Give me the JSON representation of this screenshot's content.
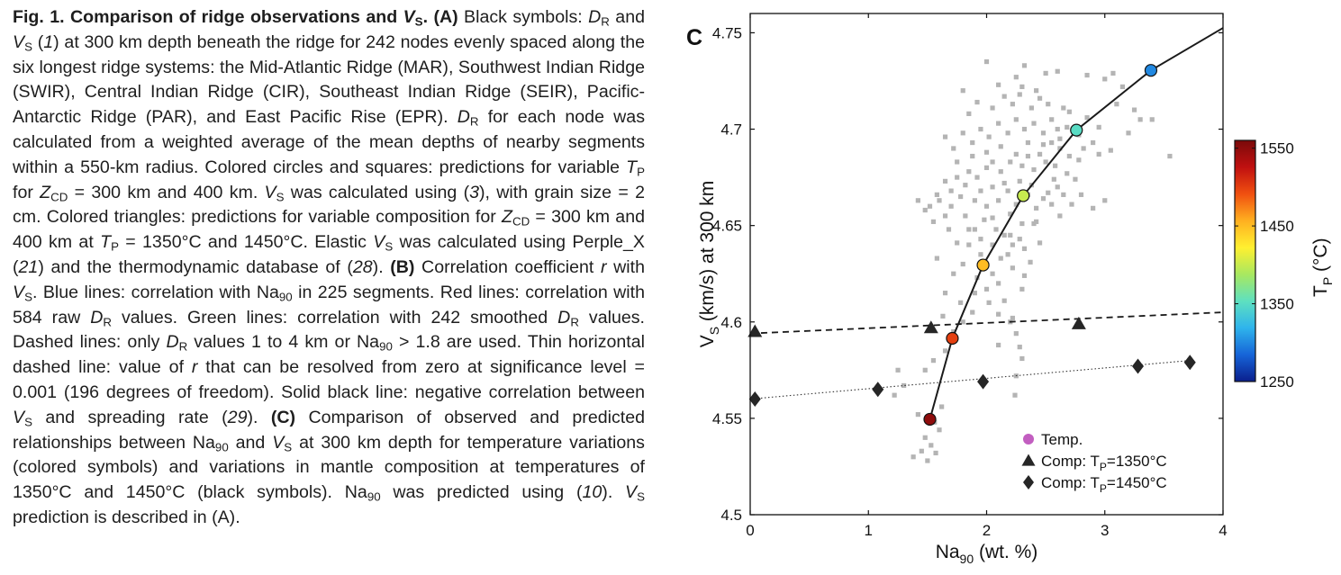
{
  "caption": {
    "fig": "Fig. 1.",
    "title_pre": "Comparison of ridge observations and ",
    "title_v": "V",
    "title_sub": "S",
    "title_post": ".",
    "body_html": "<b>(A)</b> Black symbols: <i>D</i><sub>R</sub> and <i>V</i><sub>S</sub> (<i>1</i>) at 300 km depth beneath the ridge for 242 nodes evenly spaced along the six longest ridge systems: the Mid-Atlantic Ridge (MAR), Southwest Indian Ridge (SWIR), Central Indian Ridge (CIR), Southeast Indian Ridge (SEIR), Pacific-Antarctic Ridge (PAR), and East Pacific Rise (EPR). <i>D</i><sub>R</sub> for each node was calculated from a weighted average of the mean depths of nearby segments within a 550-km radius. Colored circles and squares: predictions for variable <i>T</i><sub>P</sub> for <i>Z</i><sub>CD</sub> = 300 km and 400 km. <i>V</i><sub>S</sub> was calculated using (<i>3</i>), with grain size = 2 cm. Colored triangles: predictions for variable composition for <i>Z</i><sub>CD</sub> = 300 km and 400 km at <i>T</i><sub>P</sub> = 1350°C and 1450°C. Elastic <i>V</i><sub>S</sub> was calculated using Perple_X (<i>21</i>) and the thermodynamic database of (<i>28</i>). <b>(B)</b> Correlation coefficient <i>r</i> with <i>V</i><sub>S</sub>. Blue lines: correlation with Na<sub>90</sub> in 225 segments. Red lines: correlation with 584 raw <i>D</i><sub>R</sub> values. Green lines: correlation with 242 smoothed <i>D</i><sub>R</sub> values. Dashed lines: only <i>D</i><sub>R</sub> values 1 to 4 km or Na<sub>90</sub> &gt; 1.8 are used. Thin horizontal dashed line: value of <i>r</i> that can be resolved from zero at significance level = 0.001 (196 degrees of freedom). Solid black line: negative correlation between <i>V</i><sub>S</sub> and spreading rate (<i>29</i>). <b>(C)</b> Comparison of observed and predicted relationships between Na<sub>90</sub> and <i>V</i><sub>S</sub> at 300 km depth for temperature variations (colored symbols) and variations in mantle composition at temperatures of 1350°C and 1450°C (black symbols). Na<sub>90</sub> was predicted using (<i>10</i>). <i>V</i><sub>S</sub> prediction is described in (A)."
  },
  "chart_data": {
    "type": "scatter",
    "panel_label": "C",
    "xlabel": "Na",
    "xlabel_sub": "90",
    "xlabel_unit": " (wt. %)",
    "ylabel_pre": "V",
    "ylabel_sub": "S",
    "ylabel_post": " (km/s) at 300 km",
    "xlim": [
      0,
      4
    ],
    "ylim": [
      4.5,
      4.76
    ],
    "xticks": [
      0,
      1,
      2,
      3,
      4
    ],
    "yticks": [
      4.5,
      4.55,
      4.6,
      4.65,
      4.7,
      4.75
    ],
    "ytick_labels": [
      "4.5",
      "4.55",
      "4.6",
      "4.65",
      "4.7",
      "4.75"
    ],
    "observations": {
      "color": "#b4b4b4",
      "points": [
        [
          1.38,
          4.53
        ],
        [
          1.45,
          4.533
        ],
        [
          1.5,
          4.528
        ],
        [
          1.53,
          4.536
        ],
        [
          1.48,
          4.54
        ],
        [
          1.57,
          4.532
        ],
        [
          1.6,
          4.544
        ],
        [
          1.42,
          4.552
        ],
        [
          1.56,
          4.548
        ],
        [
          1.62,
          4.556
        ],
        [
          1.25,
          4.575
        ],
        [
          1.3,
          4.567
        ],
        [
          1.22,
          4.562
        ],
        [
          1.48,
          4.575
        ],
        [
          1.55,
          4.58
        ],
        [
          1.65,
          4.585
        ],
        [
          1.7,
          4.59
        ],
        [
          1.72,
          4.595
        ],
        [
          1.63,
          4.603
        ],
        [
          1.8,
          4.6
        ],
        [
          1.78,
          4.61
        ],
        [
          1.88,
          4.605
        ],
        [
          1.9,
          4.615
        ],
        [
          2.02,
          4.61
        ],
        [
          2.1,
          4.604
        ],
        [
          2.2,
          4.6
        ],
        [
          2.25,
          4.594
        ],
        [
          2.28,
          4.587
        ],
        [
          2.3,
          4.581
        ],
        [
          2.25,
          4.572
        ],
        [
          2.24,
          4.562
        ],
        [
          2.22,
          4.602
        ],
        [
          1.65,
          4.615
        ],
        [
          1.72,
          4.625
        ],
        [
          1.8,
          4.63
        ],
        [
          1.85,
          4.64
        ],
        [
          1.95,
          4.635
        ],
        [
          2.05,
          4.625
        ],
        [
          2.1,
          4.62
        ],
        [
          1.9,
          4.648
        ],
        [
          1.98,
          4.653
        ],
        [
          2.08,
          4.648
        ],
        [
          2.15,
          4.645
        ],
        [
          2.22,
          4.64
        ],
        [
          2.28,
          4.643
        ],
        [
          2.32,
          4.638
        ],
        [
          2.4,
          4.651
        ],
        [
          2.45,
          4.641
        ],
        [
          2.37,
          4.631
        ],
        [
          2.22,
          4.628
        ],
        [
          2.12,
          4.633
        ],
        [
          1.52,
          4.66
        ],
        [
          1.6,
          4.663
        ],
        [
          1.7,
          4.66
        ],
        [
          1.78,
          4.665
        ],
        [
          1.82,
          4.655
        ],
        [
          1.9,
          4.663
        ],
        [
          1.95,
          4.668
        ],
        [
          2.0,
          4.66
        ],
        [
          2.05,
          4.67
        ],
        [
          2.1,
          4.663
        ],
        [
          2.15,
          4.672
        ],
        [
          2.18,
          4.668
        ],
        [
          2.2,
          4.656
        ],
        [
          2.25,
          4.661
        ],
        [
          2.28,
          4.673
        ],
        [
          2.35,
          4.666
        ],
        [
          2.38,
          4.671
        ],
        [
          2.42,
          4.659
        ],
        [
          2.48,
          4.664
        ],
        [
          2.55,
          4.661
        ],
        [
          2.6,
          4.67
        ],
        [
          2.65,
          4.666
        ],
        [
          2.72,
          4.661
        ],
        [
          2.8,
          4.666
        ],
        [
          2.9,
          4.659
        ],
        [
          3.0,
          4.663
        ],
        [
          1.42,
          4.663
        ],
        [
          1.48,
          4.658
        ],
        [
          1.55,
          4.652
        ],
        [
          1.65,
          4.673
        ],
        [
          1.75,
          4.675
        ],
        [
          1.85,
          4.678
        ],
        [
          1.92,
          4.675
        ],
        [
          2.0,
          4.68
        ],
        [
          2.05,
          4.683
        ],
        [
          2.12,
          4.678
        ],
        [
          2.2,
          4.683
        ],
        [
          2.25,
          4.687
        ],
        [
          2.3,
          4.681
        ],
        [
          2.35,
          4.686
        ],
        [
          2.4,
          4.679
        ],
        [
          2.45,
          4.687
        ],
        [
          2.5,
          4.683
        ],
        [
          2.58,
          4.681
        ],
        [
          2.62,
          4.69
        ],
        [
          2.7,
          4.686
        ],
        [
          2.78,
          4.684
        ],
        [
          2.82,
          4.69
        ],
        [
          2.9,
          4.693
        ],
        [
          2.95,
          4.687
        ],
        [
          3.05,
          4.689
        ],
        [
          1.8,
          4.698
        ],
        [
          1.88,
          4.693
        ],
        [
          1.95,
          4.7
        ],
        [
          2.02,
          4.696
        ],
        [
          2.1,
          4.703
        ],
        [
          2.18,
          4.698
        ],
        [
          2.25,
          4.705
        ],
        [
          2.32,
          4.7
        ],
        [
          2.4,
          4.703
        ],
        [
          2.48,
          4.698
        ],
        [
          2.55,
          4.705
        ],
        [
          2.6,
          4.7
        ],
        [
          2.7,
          4.709
        ],
        [
          2.85,
          4.706
        ],
        [
          2.95,
          4.701
        ],
        [
          3.1,
          4.713
        ],
        [
          3.25,
          4.71
        ],
        [
          3.3,
          4.705
        ],
        [
          1.85,
          4.708
        ],
        [
          1.92,
          4.714
        ],
        [
          2.05,
          4.711
        ],
        [
          2.15,
          4.717
        ],
        [
          2.22,
          4.713
        ],
        [
          2.28,
          4.718
        ],
        [
          2.38,
          4.711
        ],
        [
          2.45,
          4.716
        ],
        [
          2.52,
          4.713
        ],
        [
          2.65,
          4.711
        ],
        [
          2.1,
          4.723
        ],
        [
          2.25,
          4.727
        ],
        [
          2.3,
          4.722
        ],
        [
          2.42,
          4.72
        ],
        [
          2.5,
          4.729
        ],
        [
          2.6,
          4.73
        ],
        [
          3.0,
          4.726
        ],
        [
          3.07,
          4.729
        ],
        [
          3.15,
          4.722
        ],
        [
          2.85,
          4.728
        ],
        [
          2.32,
          4.733
        ],
        [
          2.0,
          4.735
        ],
        [
          1.8,
          4.72
        ],
        [
          3.2,
          4.698
        ],
        [
          3.4,
          4.705
        ],
        [
          3.55,
          4.686
        ],
        [
          2.52,
          4.667
        ],
        [
          2.57,
          4.674
        ],
        [
          2.68,
          4.677
        ],
        [
          2.75,
          4.674
        ],
        [
          1.65,
          4.696
        ],
        [
          1.72,
          4.69
        ],
        [
          1.75,
          4.683
        ],
        [
          2.62,
          4.695
        ],
        [
          2.05,
          4.64
        ],
        [
          2.18,
          4.635
        ],
        [
          2.32,
          4.624
        ],
        [
          2.42,
          4.652
        ],
        [
          1.95,
          4.643
        ],
        [
          2.0,
          4.617
        ],
        [
          2.1,
          4.588
        ],
        [
          1.68,
          4.648
        ],
        [
          1.75,
          4.641
        ],
        [
          1.85,
          4.648
        ],
        [
          1.92,
          4.623
        ],
        [
          2.15,
          4.611
        ],
        [
          2.3,
          4.617
        ],
        [
          1.58,
          4.633
        ],
        [
          2.48,
          4.692
        ],
        [
          2.35,
          4.693
        ],
        [
          2.12,
          4.691
        ],
        [
          2.0,
          4.688
        ],
        [
          1.88,
          4.686
        ],
        [
          2.55,
          4.693
        ],
        [
          2.68,
          4.701
        ],
        [
          2.78,
          4.697
        ],
        [
          1.7,
          4.668
        ],
        [
          1.65,
          4.655
        ],
        [
          1.82,
          4.671
        ],
        [
          1.58,
          4.666
        ],
        [
          2.05,
          4.654
        ],
        [
          2.3,
          4.651
        ],
        [
          2.62,
          4.655
        ],
        [
          2.2,
          4.645
        ]
      ]
    },
    "temperature_series": {
      "name": "Temp.",
      "legend_color": "#c25ec0",
      "points": [
        {
          "x": 1.52,
          "y": 4.5495,
          "tp": 1550
        },
        {
          "x": 1.71,
          "y": 4.5915,
          "tp": 1500
        },
        {
          "x": 1.97,
          "y": 4.6295,
          "tp": 1450
        },
        {
          "x": 2.31,
          "y": 4.6655,
          "tp": 1400
        },
        {
          "x": 2.76,
          "y": 4.6995,
          "tp": 1350
        },
        {
          "x": 3.39,
          "y": 4.7305,
          "tp": 1300
        }
      ],
      "curve": [
        [
          1.52,
          4.5495
        ],
        [
          1.71,
          4.5915
        ],
        [
          1.97,
          4.6295
        ],
        [
          2.31,
          4.6655
        ],
        [
          2.76,
          4.6995
        ],
        [
          3.39,
          4.7305
        ],
        [
          4.0,
          4.7525
        ]
      ]
    },
    "comp_1350": {
      "name_pre": "Comp: T",
      "name_sub": "P",
      "name_post": "=1350°C",
      "points": [
        [
          0.04,
          4.595
        ],
        [
          1.53,
          4.597
        ],
        [
          2.78,
          4.599
        ]
      ],
      "line": [
        [
          0,
          4.594
        ],
        [
          4,
          4.605
        ]
      ]
    },
    "comp_1450": {
      "name_pre": "Comp: T",
      "name_sub": "P",
      "name_post": "=1450°C",
      "points": [
        [
          0.04,
          4.56
        ],
        [
          1.08,
          4.565
        ],
        [
          1.97,
          4.569
        ],
        [
          3.28,
          4.577
        ],
        [
          3.72,
          4.579
        ]
      ],
      "line": [
        [
          0,
          4.56
        ],
        [
          3.72,
          4.58
        ]
      ]
    },
    "colorbar": {
      "min": 1250,
      "max": 1560,
      "ticks": [
        1250,
        1350,
        1450,
        1550
      ],
      "tick_labels": [
        "1250",
        "1350",
        "1450",
        "1550"
      ],
      "label_pre": "T",
      "label_sub": "P",
      "label_post": " (°C)",
      "colors": [
        "#0a1e8c",
        "#1664d8",
        "#2fb4ec",
        "#5ee0c0",
        "#a8e860",
        "#fff030",
        "#ffb020",
        "#f05010",
        "#c01010",
        "#7a0a0a"
      ]
    }
  }
}
